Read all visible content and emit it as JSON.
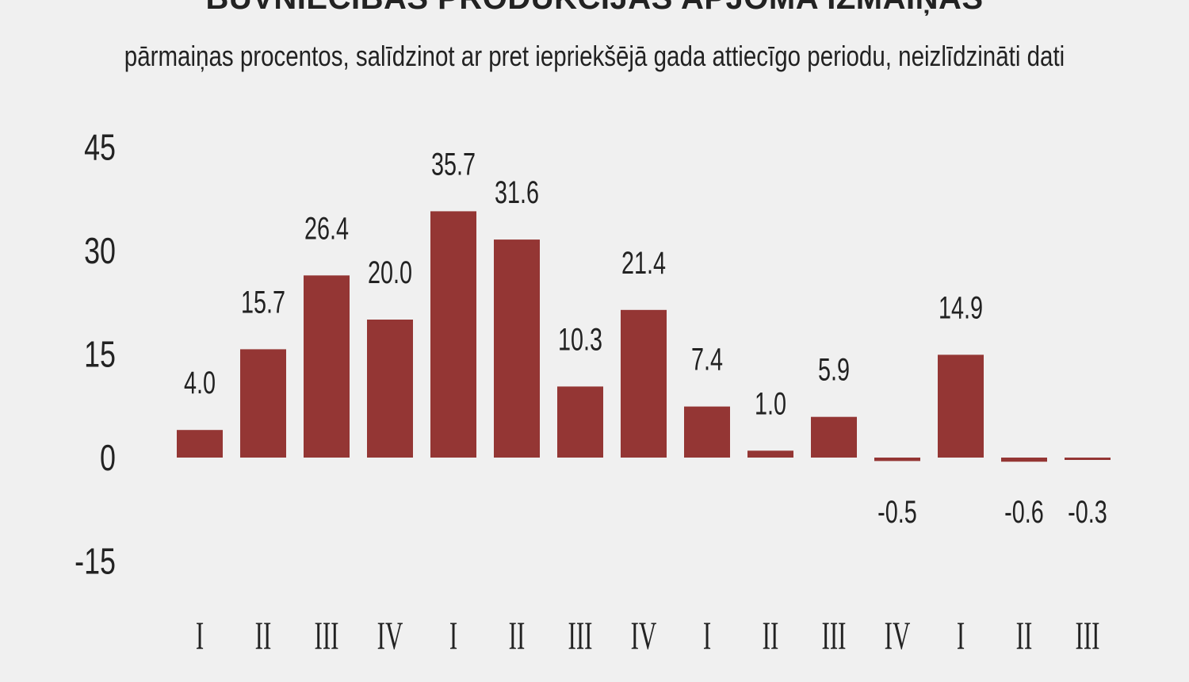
{
  "header": {
    "title": "BŪVNIECĪBAS PRODUKCIJAS APJOMA IZMAIŅAS",
    "subtitle": "pārmaiņas procentos, salīdzinot ar pret iepriekšējā gada attiecīgo periodu, neizlīdzināti dati"
  },
  "chart_data": {
    "type": "bar",
    "title": "BŪVNIECĪBAS PRODUKCIJAS APJOMA IZMAIŅAS",
    "subtitle": "pārmaiņas procentos, salīdzinot ar pret iepriekšējā gada attiecīgo periodu, neizlīdzināti dati",
    "categories": [
      "I",
      "II",
      "III",
      "IV",
      "I",
      "II",
      "III",
      "IV",
      "I",
      "II",
      "III",
      "IV",
      "I",
      "II",
      "III"
    ],
    "values": [
      4.0,
      15.7,
      26.4,
      20.0,
      35.7,
      31.6,
      10.3,
      21.4,
      7.4,
      1.0,
      5.9,
      -0.5,
      14.9,
      -0.6,
      -0.3
    ],
    "value_labels": [
      "4.0",
      "15.7",
      "26.4",
      "20.0",
      "35.7",
      "31.6",
      "10.3",
      "21.4",
      "7.4",
      "1.0",
      "5.9",
      "-0.5",
      "14.9",
      "-0.6",
      "-0.3"
    ],
    "y_ticks": [
      45,
      30,
      15,
      0,
      -15
    ],
    "ylim": [
      -15,
      45
    ],
    "grid": false,
    "legend": "none",
    "bar_color": "#943634"
  }
}
